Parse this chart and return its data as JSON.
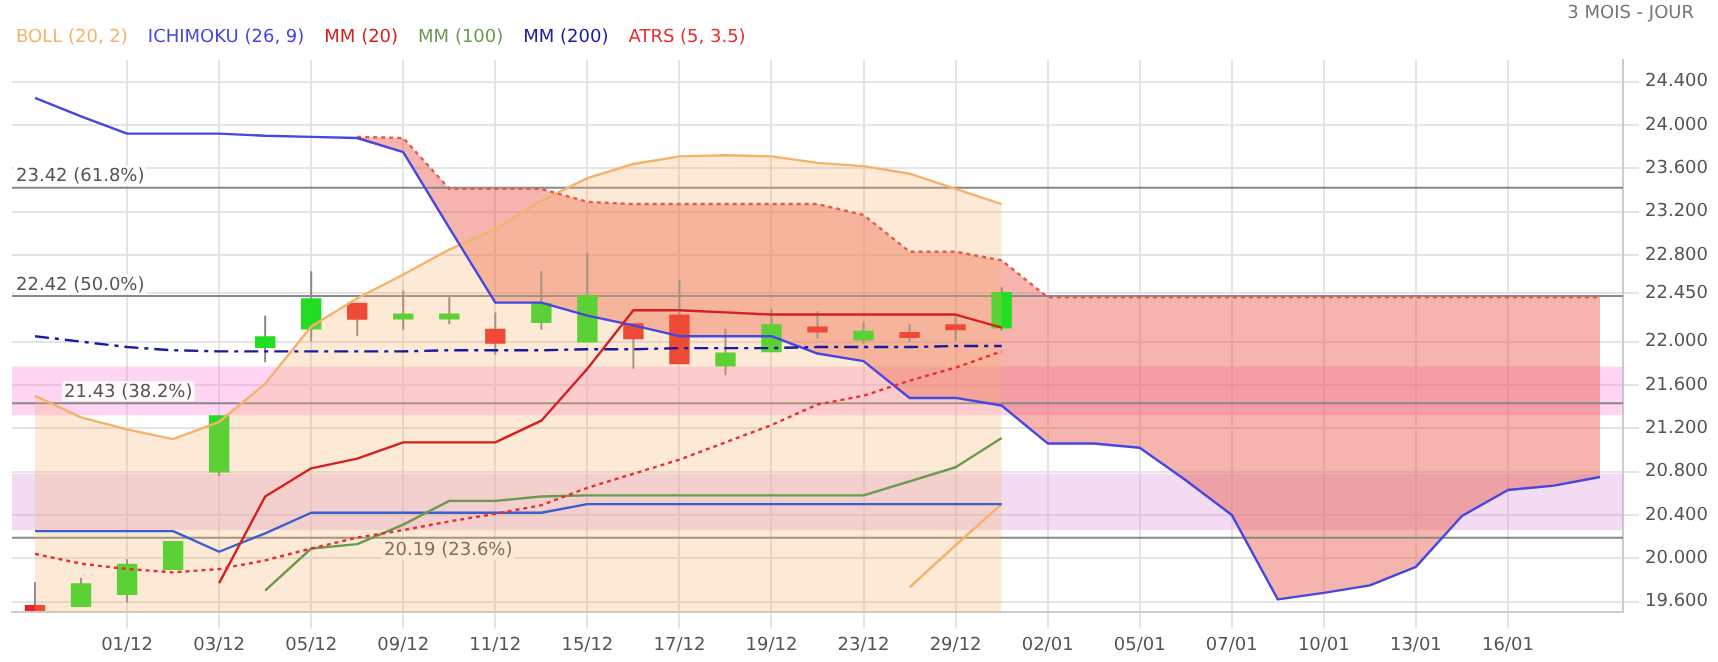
{
  "chart_data": {
    "type": "candlestick",
    "title": "3 MOIS - JOUR",
    "categories": [
      null,
      null,
      "01/12",
      null,
      "03/12",
      null,
      "05/12",
      null,
      "09/12",
      null,
      "11/12",
      null,
      "15/12",
      null,
      "17/12",
      null,
      "19/12",
      null,
      "23/12",
      null,
      "29/12",
      null,
      "02/01",
      null,
      "05/01",
      null,
      "07/01",
      null,
      "10/01",
      null,
      "13/01",
      null,
      "16/01",
      null,
      null
    ],
    "ohlc": [
      [
        19.56,
        19.78,
        19.55,
        19.55
      ],
      [
        19.56,
        19.82,
        19.56,
        19.76
      ],
      [
        19.67,
        19.99,
        19.59,
        19.94
      ],
      [
        19.9,
        20.15,
        19.9,
        20.15
      ],
      [
        20.8,
        21.31,
        20.76,
        21.31
      ],
      [
        21.95,
        22.24,
        21.81,
        22.04
      ],
      [
        22.12,
        22.65,
        22.0,
        22.39
      ],
      [
        22.35,
        22.35,
        22.05,
        22.21
      ],
      [
        22.23,
        22.47,
        22.11,
        22.25
      ],
      [
        22.23,
        22.42,
        22.16,
        22.25
      ],
      [
        22.11,
        22.27,
        21.88,
        21.99
      ],
      [
        22.18,
        22.65,
        22.11,
        22.35
      ],
      [
        22.0,
        22.82,
        22.0,
        22.42
      ],
      [
        22.16,
        22.16,
        21.75,
        22.03
      ],
      [
        22.24,
        22.57,
        21.8,
        21.8
      ],
      [
        21.78,
        22.12,
        21.69,
        21.89
      ],
      [
        21.91,
        22.3,
        21.91,
        22.15
      ],
      [
        22.13,
        22.28,
        22.03,
        22.11
      ],
      [
        22.02,
        22.18,
        21.98,
        22.09
      ],
      [
        22.08,
        22.16,
        22.0,
        22.06
      ],
      [
        22.15,
        22.24,
        22.0,
        22.13
      ],
      [
        22.13,
        22.5,
        22.1,
        22.45
      ],
      null,
      null,
      null,
      null,
      null,
      null,
      null,
      null,
      null,
      null,
      null,
      null,
      null
    ],
    "colors": [
      "#ee2222",
      "#22dd22",
      "#22dd22",
      "#22dd22",
      "#22dd22",
      "#22dd22",
      "#22dd22",
      "#ee2222",
      "#22dd22",
      "#22dd22",
      "#ee2222",
      "#22dd22",
      "#22dd22",
      "#ee2222",
      "#ee2222",
      "#22dd22",
      "#22dd22",
      "#ee2222",
      "#22dd22",
      "#ee2222",
      "#ee2222",
      "#22dd22",
      null,
      null,
      null,
      null,
      null,
      null,
      null,
      null,
      null,
      null,
      null,
      null,
      null
    ],
    "series": [
      {
        "name": "BOLL (20, 2)",
        "type": "area",
        "color": "#f5b26b",
        "values": [
          21.5,
          21.3,
          21.19,
          21.1,
          21.26,
          21.61,
          22.14,
          22.4,
          22.62,
          22.85,
          23.04,
          23.3,
          23.51,
          23.64,
          23.71,
          23.72,
          23.71,
          23.65,
          23.62,
          23.55,
          23.41,
          23.27,
          null,
          null,
          null,
          null,
          null,
          null,
          null,
          null,
          null,
          null,
          null,
          null,
          null
        ]
      },
      {
        "type": "line",
        "color": "#f5b26b",
        "values": [
          null,
          null,
          null,
          null,
          null,
          null,
          null,
          null,
          null,
          null,
          null,
          null,
          null,
          null,
          null,
          null,
          null,
          null,
          null,
          19.73,
          20.12,
          20.5,
          null,
          null,
          null,
          null,
          null,
          null,
          null,
          null,
          null,
          null,
          null,
          null,
          null
        ]
      },
      {
        "type": "line",
        "color": "#e8584c",
        "line_style": "dotted",
        "values": [
          null,
          null,
          null,
          null,
          null,
          null,
          null,
          23.89,
          23.88,
          23.41,
          23.41,
          23.41,
          23.29,
          23.27,
          23.27,
          23.27,
          23.27,
          23.27,
          23.17,
          22.83,
          22.83,
          22.75,
          22.41,
          22.41,
          22.41,
          22.41,
          22.41,
          22.41,
          22.41,
          22.41,
          22.41,
          22.41,
          22.41,
          22.41,
          22.41
        ],
        "upper": [
          null,
          null,
          null,
          null,
          null,
          null,
          null,
          23.89,
          23.88,
          23.41,
          23.41,
          23.41,
          23.29,
          23.27,
          23.27,
          23.27,
          23.27,
          23.27,
          23.17,
          22.83,
          22.83,
          22.75,
          22.41,
          22.41,
          22.41,
          22.41,
          22.41,
          22.41,
          22.41,
          22.41,
          22.41,
          22.41,
          22.41,
          22.41,
          22.41
        ],
        "lower": [
          null,
          null,
          null,
          null,
          null,
          null,
          null,
          23.88,
          23.75,
          23.05,
          22.36,
          22.36,
          22.24,
          22.15,
          22.05,
          22.05,
          22.05,
          21.89,
          21.82,
          21.48,
          21.48,
          21.41,
          21.06,
          21.06,
          21.02,
          20.72,
          20.4,
          19.62,
          19.68,
          19.75,
          19.92,
          20.39,
          20.63,
          20.67,
          20.75
        ]
      },
      {
        "name": "ICHIMOKU (26, 9)",
        "type": "line",
        "color": "#4646e0",
        "values": [
          24.25,
          24.08,
          23.92,
          23.92,
          23.92,
          23.9,
          23.89,
          23.88,
          23.75,
          23.05,
          22.36,
          22.36,
          22.24,
          22.15,
          22.05,
          22.05,
          22.05,
          21.89,
          21.82,
          21.48,
          21.48,
          21.41,
          21.06,
          21.06,
          21.02,
          20.72,
          20.4,
          19.62,
          19.68,
          19.75,
          19.92,
          20.39,
          20.63,
          20.67,
          20.75
        ]
      },
      {
        "type": "line",
        "color": "#3a5fcd",
        "values": [
          20.25,
          20.25,
          20.25,
          20.25,
          20.06,
          20.23,
          20.42,
          20.42,
          20.42,
          20.42,
          20.42,
          20.42,
          20.5,
          20.5,
          20.5,
          20.5,
          20.5,
          20.5,
          20.5,
          20.5,
          20.5,
          20.5,
          null,
          null,
          null,
          null,
          null,
          null,
          null,
          null,
          null,
          null,
          null,
          null,
          null
        ]
      },
      {
        "name": "MM (20)",
        "type": "line",
        "color": "#d42020",
        "values": [
          null,
          null,
          null,
          null,
          19.77,
          20.57,
          20.83,
          20.92,
          21.07,
          21.07,
          21.07,
          21.27,
          21.75,
          22.29,
          22.29,
          22.27,
          22.25,
          22.25,
          22.25,
          22.25,
          22.25,
          22.13,
          null,
          null,
          null,
          null,
          null,
          null,
          null,
          null,
          null,
          null,
          null,
          null,
          null
        ]
      },
      {
        "name": "MM (100)",
        "type": "line",
        "color": "#6a9a50",
        "values": [
          null,
          null,
          null,
          null,
          null,
          19.7,
          20.09,
          20.13,
          20.31,
          20.53,
          20.53,
          20.57,
          20.58,
          20.58,
          20.58,
          20.58,
          20.58,
          20.58,
          20.58,
          20.71,
          20.84,
          21.11,
          null,
          null,
          null,
          null,
          null,
          null,
          null,
          null,
          null,
          null,
          null,
          null,
          null
        ]
      },
      {
        "name": "MM (200)",
        "type": "line",
        "color": "#1a1aa0",
        "line_style": "dashed",
        "values": [
          22.05,
          22.0,
          21.95,
          21.92,
          21.91,
          21.91,
          21.91,
          21.91,
          21.91,
          21.92,
          21.92,
          21.92,
          21.93,
          21.93,
          21.94,
          21.94,
          21.94,
          21.95,
          21.95,
          21.95,
          21.96,
          21.96,
          null,
          null,
          null,
          null,
          null,
          null,
          null,
          null,
          null,
          null,
          null,
          null,
          null
        ]
      },
      {
        "name": "ATRS (5, 3.5)",
        "type": "line",
        "color": "#e83030",
        "line_style": "dotted",
        "values": [
          20.04,
          19.95,
          19.9,
          19.87,
          19.9,
          19.98,
          20.09,
          20.19,
          20.26,
          20.34,
          20.41,
          20.49,
          20.65,
          20.78,
          20.91,
          21.07,
          21.23,
          21.42,
          21.5,
          21.64,
          21.76,
          21.91,
          null,
          null,
          null,
          null,
          null,
          null,
          null,
          null,
          null,
          null,
          null,
          null,
          null
        ]
      }
    ],
    "ylim": [
      19.5,
      24.6
    ],
    "yticks": [
      {
        "value": 19.6,
        "label": "19.600"
      },
      {
        "value": 20.0,
        "label": "20.000"
      },
      {
        "value": 20.4,
        "label": "20.400"
      },
      {
        "value": 20.8,
        "label": "20.800"
      },
      {
        "value": 21.2,
        "label": "21.200"
      },
      {
        "value": 21.6,
        "label": "21.600"
      },
      {
        "value": 22.0,
        "label": "22.000"
      },
      {
        "value": 22.45,
        "label": "22.450"
      },
      {
        "value": 22.8,
        "label": "22.800"
      },
      {
        "value": 23.2,
        "label": "23.200"
      },
      {
        "value": 23.6,
        "label": "23.600"
      },
      {
        "value": 24.0,
        "label": "24.000"
      },
      {
        "value": 24.4,
        "label": "24.400"
      }
    ],
    "ref_lines": [
      {
        "axis": "y",
        "value": 23.42,
        "label": "23.42 (61.8%)",
        "color": "#888888"
      },
      {
        "axis": "y",
        "value": 22.42,
        "label": "22.42 (50.0%)",
        "color": "#888888"
      },
      {
        "axis": "y",
        "value": 21.43,
        "label": "21.43 (38.2%)",
        "color": "#888888"
      },
      {
        "axis": "y",
        "value": 20.19,
        "label": "20.19 (23.6%)",
        "color": "#888888"
      }
    ],
    "bands": [
      {
        "axis": "y",
        "from": 21.32,
        "to": 21.77,
        "color": "#ff88dd"
      },
      {
        "axis": "y",
        "from": 20.26,
        "to": 20.78,
        "color": "#dd99dd"
      }
    ],
    "grid": true,
    "legend": "top left",
    "marker": "none"
  }
}
